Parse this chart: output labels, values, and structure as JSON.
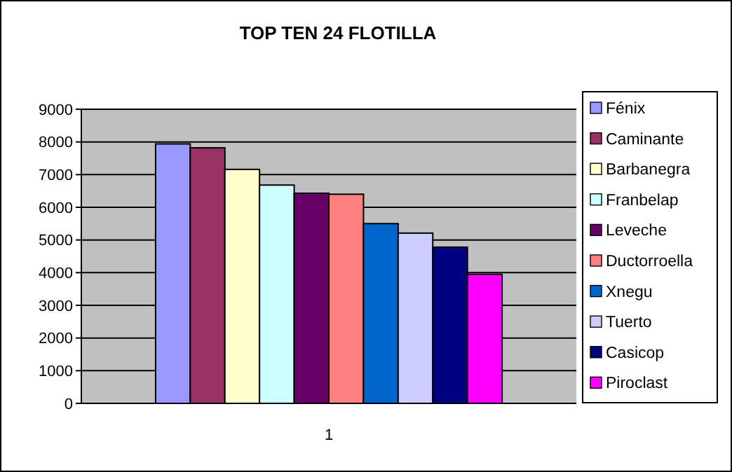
{
  "chart_data": {
    "type": "bar",
    "title": "TOP TEN  24 FLOTILLA",
    "categories": [
      "1"
    ],
    "series": [
      {
        "name": "Fénix",
        "color": "#9999ff",
        "values": [
          7940
        ]
      },
      {
        "name": "Caminante",
        "color": "#993366",
        "values": [
          7820
        ]
      },
      {
        "name": "Barbanegra",
        "color": "#ffffcc",
        "values": [
          7160
        ]
      },
      {
        "name": "Franbelap",
        "color": "#ccffff",
        "values": [
          6680
        ]
      },
      {
        "name": "Leveche",
        "color": "#660066",
        "values": [
          6430
        ]
      },
      {
        "name": "Ductorroella",
        "color": "#ff8080",
        "values": [
          6400
        ]
      },
      {
        "name": "Xnegu",
        "color": "#0066cc",
        "values": [
          5500
        ]
      },
      {
        "name": "Tuerto",
        "color": "#ccccff",
        "values": [
          5210
        ]
      },
      {
        "name": "Casicop",
        "color": "#000080",
        "values": [
          4780
        ]
      },
      {
        "name": "Piroclast",
        "color": "#ff00ff",
        "values": [
          3950
        ]
      }
    ],
    "ylim": [
      0,
      9000
    ],
    "yticks": [
      0,
      1000,
      2000,
      3000,
      4000,
      5000,
      6000,
      7000,
      8000,
      9000
    ],
    "grid": "y",
    "legend": "right"
  }
}
